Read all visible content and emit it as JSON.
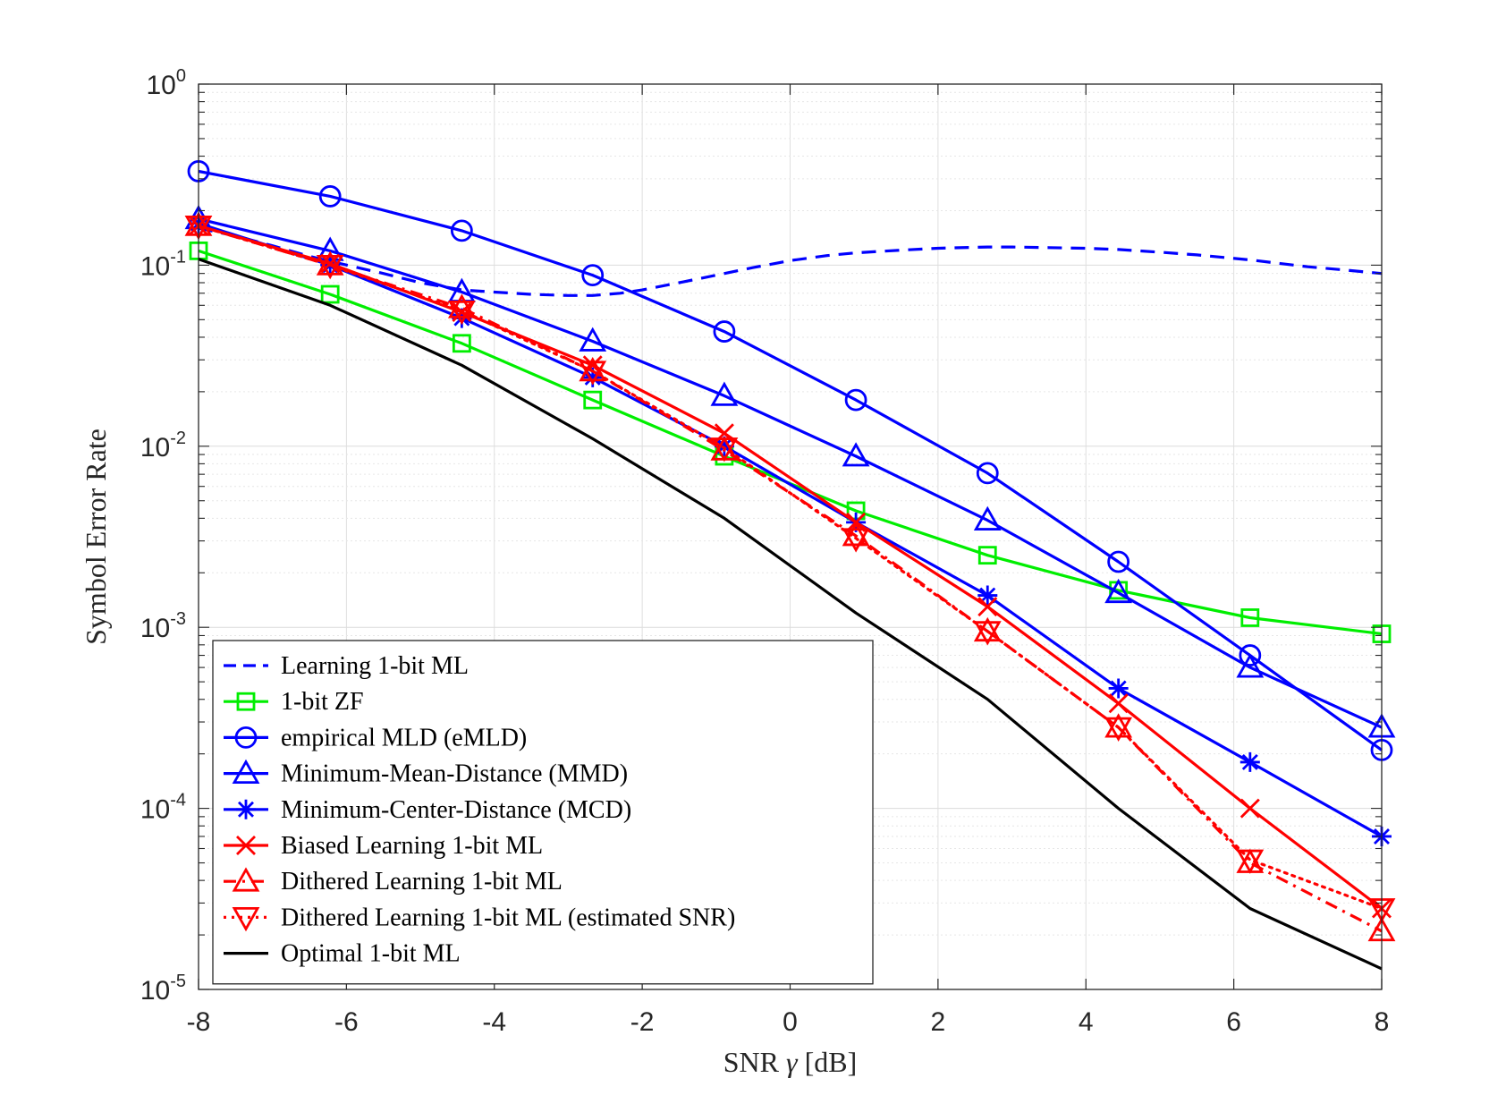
{
  "chart_data": {
    "type": "line",
    "title": "",
    "xlabel": "SNR",
    "xlabel_symbol": "γ",
    "xlabel_unit": "[dB]",
    "ylabel": "Symbol Error Rate",
    "xlim": [
      -8,
      8
    ],
    "ylim_log10": [
      -5,
      0
    ],
    "yscale": "log",
    "grid": true,
    "legend_location": "bottom-left",
    "x_ticks": [
      {
        "value": -8,
        "label": "-8"
      },
      {
        "value": -6,
        "label": "-6"
      },
      {
        "value": -4,
        "label": "-4"
      },
      {
        "value": -2,
        "label": "-2"
      },
      {
        "value": 0,
        "label": "0"
      },
      {
        "value": 2,
        "label": "2"
      },
      {
        "value": 4,
        "label": "4"
      },
      {
        "value": 6,
        "label": "6"
      },
      {
        "value": 8,
        "label": "8"
      }
    ],
    "y_ticks": [
      {
        "exp": 0,
        "base": "10",
        "sup": "0"
      },
      {
        "exp": -1,
        "base": "10",
        "sup": "-1"
      },
      {
        "exp": -2,
        "base": "10",
        "sup": "-2"
      },
      {
        "exp": -3,
        "base": "10",
        "sup": "-3"
      },
      {
        "exp": -4,
        "base": "10",
        "sup": "-4"
      },
      {
        "exp": -5,
        "base": "10",
        "sup": "-5"
      }
    ],
    "x": [
      -8,
      -6.22,
      -4.44,
      -2.67,
      -0.89,
      0.89,
      2.67,
      4.44,
      6.22,
      8
    ],
    "series": [
      {
        "name": "Learning 1-bit ML",
        "color": "#0000ff",
        "dash": "dashed",
        "marker": "none",
        "x": [
          -8,
          -7.5,
          -7,
          -6.5,
          -6.22,
          -5.5,
          -5,
          -4.44,
          -4,
          -3.5,
          -3,
          -2.67,
          -2.3,
          -2,
          -1.5,
          -1,
          -0.5,
          0,
          0.5,
          0.89,
          1.5,
          2,
          2.67,
          3,
          3.5,
          4,
          4.44,
          5,
          5.5,
          6.22,
          7,
          7.5,
          8
        ],
        "values": [
          0.16,
          0.145,
          0.128,
          0.112,
          0.105,
          0.09,
          0.08,
          0.073,
          0.071,
          0.069,
          0.068,
          0.068,
          0.07,
          0.073,
          0.08,
          0.088,
          0.097,
          0.106,
          0.113,
          0.117,
          0.121,
          0.124,
          0.126,
          0.126,
          0.125,
          0.124,
          0.122,
          0.118,
          0.114,
          0.107,
          0.098,
          0.094,
          0.09
        ]
      },
      {
        "name": "1-bit ZF",
        "color": "#00ee00",
        "dash": "solid",
        "marker": "square",
        "values": [
          0.12,
          0.069,
          0.037,
          0.018,
          0.0088,
          0.0044,
          0.0025,
          0.0016,
          0.00113,
          0.00092
        ]
      },
      {
        "name": "empirical MLD (eMLD)",
        "color": "#0000ff",
        "dash": "solid",
        "marker": "circle",
        "values": [
          0.33,
          0.24,
          0.155,
          0.088,
          0.043,
          0.018,
          0.0071,
          0.0023,
          0.0007,
          0.00021
        ]
      },
      {
        "name": "Minimum-Mean-Distance (MMD)",
        "color": "#0000ff",
        "dash": "solid",
        "marker": "triangle-up",
        "values": [
          0.18,
          0.12,
          0.071,
          0.038,
          0.019,
          0.0088,
          0.0039,
          0.00155,
          0.0006,
          0.00028
        ]
      },
      {
        "name": "Minimum-Center-Distance (MCD)",
        "color": "#0000ff",
        "dash": "solid",
        "marker": "asterisk",
        "values": [
          0.17,
          0.1,
          0.051,
          0.024,
          0.01,
          0.0038,
          0.0015,
          0.00046,
          0.00018,
          7e-05
        ]
      },
      {
        "name": "Biased Learning 1-bit ML",
        "color": "#ff0000",
        "dash": "solid",
        "marker": "x",
        "values": [
          0.165,
          0.102,
          0.055,
          0.028,
          0.0118,
          0.0038,
          0.0013,
          0.00038,
          0.0001,
          2.8e-05
        ]
      },
      {
        "name": "Dithered Learning 1-bit ML",
        "color": "#ff0000",
        "dash": "dashdot",
        "marker": "triangle-up",
        "values": [
          0.165,
          0.1,
          0.058,
          0.026,
          0.0095,
          0.0032,
          0.00095,
          0.00028,
          5e-05,
          2.1e-05
        ]
      },
      {
        "name": "Dithered Learning 1-bit ML (estimated SNR)",
        "color": "#ff0000",
        "dash": "dotted",
        "marker": "triangle-down",
        "values": [
          0.165,
          0.1,
          0.056,
          0.026,
          0.0098,
          0.0031,
          0.00095,
          0.00028,
          5.2e-05,
          2.8e-05
        ]
      },
      {
        "name": "Optimal 1-bit ML",
        "color": "#000000",
        "dash": "solid",
        "marker": "none",
        "values": [
          0.108,
          0.06,
          0.028,
          0.011,
          0.004,
          0.0012,
          0.0004,
          0.0001,
          2.8e-05,
          1.3e-05
        ]
      }
    ]
  }
}
